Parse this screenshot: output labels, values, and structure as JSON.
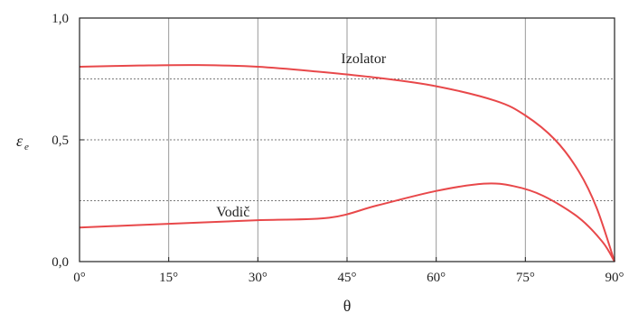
{
  "chart_data": {
    "type": "line",
    "title": "",
    "xlabel": "θ",
    "ylabel": "ε",
    "ylabel_subscript": "e",
    "xlim": [
      0,
      90
    ],
    "ylim": [
      0,
      1.0
    ],
    "x_ticks": [
      0,
      15,
      30,
      45,
      60,
      75,
      90
    ],
    "x_tick_labels": [
      "0°",
      "15°",
      "30°",
      "45°",
      "60°",
      "75°",
      "90°"
    ],
    "y_ticks": [
      0,
      0.5,
      1.0
    ],
    "y_tick_labels": [
      "0,0",
      "0,5",
      "1,0"
    ],
    "grid": {
      "vertical": true,
      "horizontal_dashed": [
        0.25,
        0.5,
        0.75
      ]
    },
    "line_color": "#e8484a",
    "series": [
      {
        "name": "Izolator",
        "x": [
          0,
          10,
          20,
          30,
          40,
          50,
          60,
          70,
          75,
          80,
          84,
          87,
          90
        ],
        "y": [
          0.8,
          0.805,
          0.807,
          0.8,
          0.78,
          0.755,
          0.72,
          0.66,
          0.6,
          0.5,
          0.37,
          0.22,
          0.0
        ]
      },
      {
        "name": "Vodič",
        "x": [
          0,
          15,
          30,
          42,
          50,
          60,
          68,
          73,
          78,
          84,
          88,
          90
        ],
        "y": [
          0.14,
          0.155,
          0.17,
          0.18,
          0.23,
          0.29,
          0.32,
          0.31,
          0.27,
          0.18,
          0.08,
          0.0
        ]
      }
    ],
    "series_label_positions": [
      {
        "name": "Izolator",
        "x": 44,
        "y": 0.815
      },
      {
        "name": "Vodič",
        "x": 23,
        "y": 0.185
      }
    ]
  }
}
